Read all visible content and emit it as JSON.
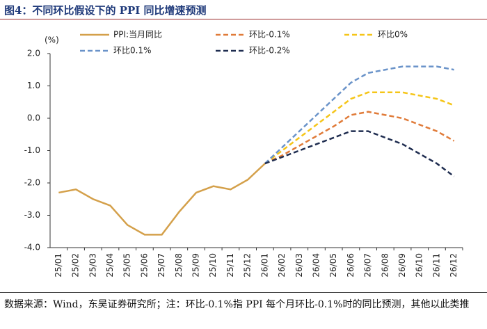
{
  "chart_data": {
    "type": "line",
    "title": "图4：不同环比假设下的 PPI 同比增速预测",
    "y_unit": "(%)",
    "source": "数据来源：Wind，东吴证券研究所；注：环比-0.1%指 PPI 每个月环比-0.1%时的同比预测，其他以此类推",
    "categories": [
      "25/01",
      "25/02",
      "25/03",
      "25/04",
      "25/05",
      "25/06",
      "25/07",
      "25/08",
      "25/09",
      "25/10",
      "25/11",
      "25/12",
      "26/01",
      "26/02",
      "26/03",
      "26/04",
      "26/05",
      "26/06",
      "26/07",
      "26/08",
      "26/09",
      "26/10",
      "26/11",
      "26/12"
    ],
    "series": [
      {
        "name": "PPI:当月同比",
        "color": "#d4a04a",
        "dashed": false,
        "values": [
          -2.3,
          -2.2,
          -2.5,
          -2.7,
          -3.3,
          -3.6,
          -3.6,
          -2.9,
          -2.3,
          -2.1,
          -2.2,
          -1.9,
          -1.4,
          null,
          null,
          null,
          null,
          null,
          null,
          null,
          null,
          null,
          null,
          null
        ]
      },
      {
        "name": "环比-0.1%",
        "color": "#e07b39",
        "dashed": true,
        "values": [
          null,
          null,
          null,
          null,
          null,
          null,
          null,
          null,
          null,
          null,
          null,
          null,
          -1.4,
          -1.15,
          -0.85,
          -0.55,
          -0.25,
          0.1,
          0.2,
          0.1,
          0.0,
          -0.2,
          -0.4,
          -0.7
        ]
      },
      {
        "name": "环比0%",
        "color": "#f5c518",
        "dashed": true,
        "values": [
          null,
          null,
          null,
          null,
          null,
          null,
          null,
          null,
          null,
          null,
          null,
          null,
          -1.4,
          -1.0,
          -0.6,
          -0.2,
          0.2,
          0.6,
          0.8,
          0.8,
          0.8,
          0.7,
          0.6,
          0.4
        ]
      },
      {
        "name": "环比0.1%",
        "color": "#6a93c9",
        "dashed": true,
        "values": [
          null,
          null,
          null,
          null,
          null,
          null,
          null,
          null,
          null,
          null,
          null,
          null,
          -1.4,
          -0.9,
          -0.4,
          0.1,
          0.6,
          1.1,
          1.4,
          1.5,
          1.6,
          1.6,
          1.6,
          1.5
        ]
      },
      {
        "name": "环比-0.2%",
        "color": "#1f2d50",
        "dashed": true,
        "values": [
          null,
          null,
          null,
          null,
          null,
          null,
          null,
          null,
          null,
          null,
          null,
          null,
          -1.4,
          -1.2,
          -1.0,
          -0.8,
          -0.6,
          -0.4,
          -0.4,
          -0.6,
          -0.8,
          -1.1,
          -1.4,
          -1.8
        ]
      }
    ],
    "ylim": [
      -4,
      2
    ],
    "yticks": [
      {
        "value": 2,
        "label": "2.0"
      },
      {
        "value": 1,
        "label": "1.0"
      },
      {
        "value": 0,
        "label": "0.0"
      },
      {
        "value": -1,
        "label": "-1.0"
      },
      {
        "value": -2,
        "label": "-2.0"
      },
      {
        "value": -3,
        "label": "-3.0"
      },
      {
        "value": -4,
        "label": "-4.0"
      }
    ],
    "grid": false
  }
}
